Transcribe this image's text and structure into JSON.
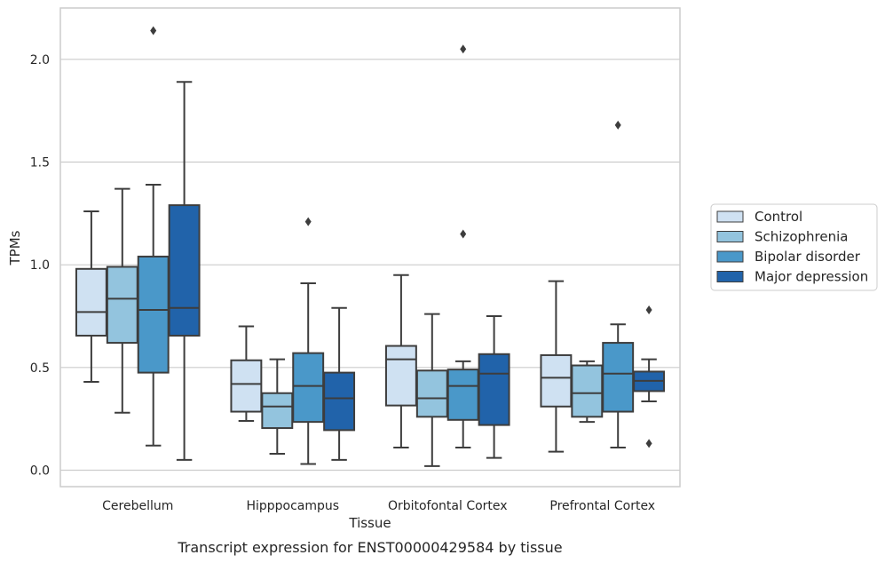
{
  "chart_data": {
    "type": "boxplot",
    "caption": "Transcript expression for ENST00000429584 by tissue",
    "xlabel": "Tissue",
    "ylabel": "TPMs",
    "ylim": [
      -0.08,
      2.25
    ],
    "yticks": [
      0.0,
      0.5,
      1.0,
      1.5,
      2.0
    ],
    "ytick_labels": [
      "0.0",
      "0.5",
      "1.0",
      "1.5",
      "2.0"
    ],
    "categories": [
      "Cerebellum",
      "Hipppocampus",
      "Orbitofontal Cortex",
      "Prefrontal Cortex"
    ],
    "grid": "horizontal",
    "legend_placement": "right",
    "series": [
      {
        "name": "Control",
        "color": "#cfe1f2",
        "boxes": [
          {
            "whislo": 0.43,
            "q1": 0.655,
            "med": 0.77,
            "q3": 0.98,
            "whishi": 1.26,
            "fliers": []
          },
          {
            "whislo": 0.24,
            "q1": 0.285,
            "med": 0.42,
            "q3": 0.535,
            "whishi": 0.7,
            "fliers": []
          },
          {
            "whislo": 0.11,
            "q1": 0.315,
            "med": 0.54,
            "q3": 0.605,
            "whishi": 0.95,
            "fliers": []
          },
          {
            "whislo": 0.09,
            "q1": 0.31,
            "med": 0.45,
            "q3": 0.56,
            "whishi": 0.92,
            "fliers": []
          }
        ]
      },
      {
        "name": "Schizophrenia",
        "color": "#93c4de",
        "boxes": [
          {
            "whislo": 0.28,
            "q1": 0.62,
            "med": 0.835,
            "q3": 0.99,
            "whishi": 1.37,
            "fliers": []
          },
          {
            "whislo": 0.08,
            "q1": 0.205,
            "med": 0.31,
            "q3": 0.375,
            "whishi": 0.54,
            "fliers": []
          },
          {
            "whislo": 0.02,
            "q1": 0.26,
            "med": 0.35,
            "q3": 0.485,
            "whishi": 0.76,
            "fliers": []
          },
          {
            "whislo": 0.235,
            "q1": 0.26,
            "med": 0.375,
            "q3": 0.51,
            "whishi": 0.53,
            "fliers": []
          }
        ]
      },
      {
        "name": "Bipolar disorder",
        "color": "#4a98c9",
        "boxes": [
          {
            "whislo": 0.12,
            "q1": 0.475,
            "med": 0.78,
            "q3": 1.04,
            "whishi": 1.39,
            "fliers": [
              2.14
            ]
          },
          {
            "whislo": 0.03,
            "q1": 0.235,
            "med": 0.41,
            "q3": 0.57,
            "whishi": 0.91,
            "fliers": [
              1.21
            ]
          },
          {
            "whislo": 0.11,
            "q1": 0.245,
            "med": 0.41,
            "q3": 0.49,
            "whishi": 0.53,
            "fliers": [
              2.05,
              1.15
            ]
          },
          {
            "whislo": 0.11,
            "q1": 0.285,
            "med": 0.47,
            "q3": 0.62,
            "whishi": 0.71,
            "fliers": [
              1.68
            ]
          }
        ]
      },
      {
        "name": "Major depression",
        "color": "#2163aa",
        "boxes": [
          {
            "whislo": 0.05,
            "q1": 0.655,
            "med": 0.79,
            "q3": 1.29,
            "whishi": 1.89,
            "fliers": []
          },
          {
            "whislo": 0.05,
            "q1": 0.195,
            "med": 0.35,
            "q3": 0.475,
            "whishi": 0.79,
            "fliers": []
          },
          {
            "whislo": 0.06,
            "q1": 0.22,
            "med": 0.47,
            "q3": 0.565,
            "whishi": 0.75,
            "fliers": []
          },
          {
            "whislo": 0.335,
            "q1": 0.385,
            "med": 0.435,
            "q3": 0.48,
            "whishi": 0.54,
            "fliers": [
              0.78,
              0.13
            ]
          }
        ]
      }
    ]
  }
}
